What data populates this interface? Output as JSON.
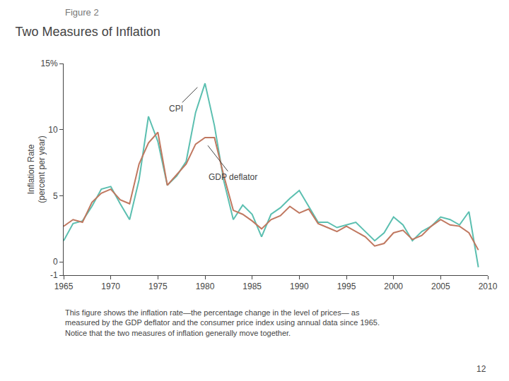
{
  "chart_data": {
    "type": "line",
    "subtitle": "Figure 2",
    "title": "Two Measures of Inflation",
    "ylabel": "Inflation Rate\n(percent per year)",
    "x": [
      1965,
      1966,
      1967,
      1968,
      1969,
      1970,
      1971,
      1972,
      1973,
      1974,
      1975,
      1976,
      1977,
      1978,
      1979,
      1980,
      1981,
      1982,
      1983,
      1984,
      1985,
      1986,
      1987,
      1988,
      1989,
      1990,
      1991,
      1992,
      1993,
      1994,
      1995,
      1996,
      1997,
      1998,
      1999,
      2000,
      2001,
      2002,
      2003,
      2004,
      2005,
      2006,
      2007,
      2008,
      2009
    ],
    "series": [
      {
        "name": "CPI",
        "color": "#5bbfb0",
        "values": [
          1.6,
          2.9,
          3.1,
          4.2,
          5.5,
          5.7,
          4.4,
          3.2,
          6.2,
          11.0,
          9.1,
          5.8,
          6.5,
          7.6,
          11.3,
          13.5,
          10.3,
          6.1,
          3.2,
          4.3,
          3.6,
          1.9,
          3.6,
          4.1,
          4.8,
          5.4,
          4.2,
          3.0,
          3.0,
          2.6,
          2.8,
          3.0,
          2.3,
          1.6,
          2.2,
          3.4,
          2.8,
          1.6,
          2.3,
          2.7,
          3.4,
          3.2,
          2.8,
          3.8,
          -0.4
        ]
      },
      {
        "name": "GDP deflator",
        "color": "#c07860",
        "values": [
          2.7,
          3.2,
          3.0,
          4.5,
          5.2,
          5.5,
          4.7,
          4.4,
          7.4,
          9.0,
          9.8,
          5.8,
          6.6,
          7.4,
          8.9,
          9.4,
          9.4,
          6.5,
          3.9,
          3.6,
          3.1,
          2.5,
          3.2,
          3.5,
          4.2,
          3.7,
          4.0,
          2.9,
          2.6,
          2.3,
          2.7,
          2.3,
          1.9,
          1.2,
          1.4,
          2.2,
          2.4,
          1.7,
          2.0,
          2.7,
          3.2,
          2.8,
          2.7,
          2.2,
          0.9
        ]
      }
    ],
    "xlim": [
      1965,
      2010
    ],
    "xticks": [
      1965,
      1970,
      1975,
      1980,
      1985,
      1990,
      1995,
      2000,
      2005,
      2010
    ],
    "ylim": [
      -1,
      15
    ],
    "yticks": [
      -1,
      0,
      5,
      10,
      {
        "value": 15,
        "label": "15%"
      }
    ],
    "grid": false,
    "annotations": [
      {
        "text": "CPI",
        "x": 1979.2,
        "y": 13.2
      },
      {
        "text": "GDP deflator",
        "x": 1980.3,
        "y": 8.8
      }
    ],
    "caption": "This figure shows the inflation rate—the percentage change in the level of prices— as\nmeasured by the GDP deflator and the consumer price index using annual data since 1965.\nNotice that the two measures of inflation generally move together.",
    "page_number": "12"
  }
}
